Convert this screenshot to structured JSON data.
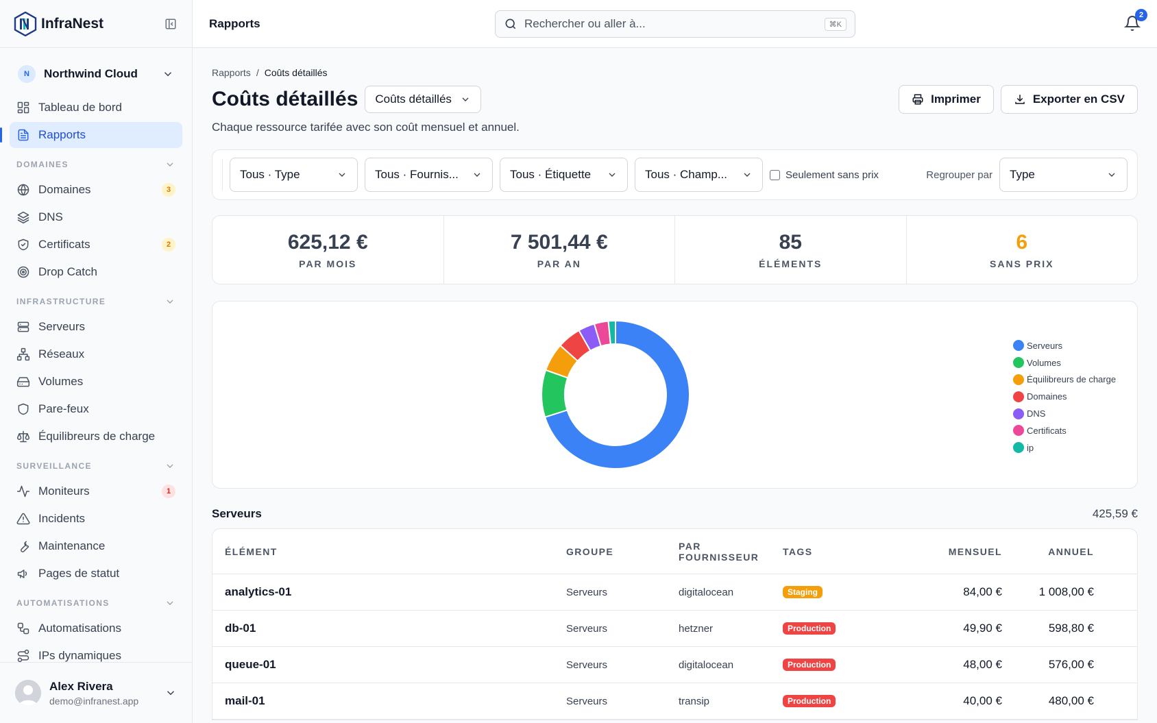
{
  "brand": {
    "name": "InfraNest"
  },
  "org": {
    "initial": "N",
    "name": "Northwind Cloud"
  },
  "nav_top": [
    {
      "label": "Tableau de bord",
      "icon": "dashboard-icon"
    },
    {
      "label": "Rapports",
      "icon": "report-icon",
      "active": true
    }
  ],
  "sections": [
    {
      "title": "DOMAINES",
      "items": [
        {
          "label": "Domaines",
          "icon": "globe-icon",
          "badge": "3",
          "badge_color": "amber"
        },
        {
          "label": "DNS",
          "icon": "layers-icon"
        },
        {
          "label": "Certificats",
          "icon": "shield-check-icon",
          "badge": "2",
          "badge_color": "amber"
        },
        {
          "label": "Drop Catch",
          "icon": "target-icon"
        }
      ]
    },
    {
      "title": "INFRASTRUCTURE",
      "items": [
        {
          "label": "Serveurs",
          "icon": "server-icon"
        },
        {
          "label": "Réseaux",
          "icon": "network-icon"
        },
        {
          "label": "Volumes",
          "icon": "hard-drive-icon"
        },
        {
          "label": "Pare-feux",
          "icon": "shield-icon"
        },
        {
          "label": "Équilibreurs de charge",
          "icon": "scale-icon"
        }
      ]
    },
    {
      "title": "SURVEILLANCE",
      "items": [
        {
          "label": "Moniteurs",
          "icon": "activity-icon",
          "badge": "1",
          "badge_color": "red"
        },
        {
          "label": "Incidents",
          "icon": "alert-triangle-icon"
        },
        {
          "label": "Maintenance",
          "icon": "wrench-icon"
        },
        {
          "label": "Pages de statut",
          "icon": "megaphone-icon"
        }
      ]
    },
    {
      "title": "AUTOMATISATIONS",
      "items": [
        {
          "label": "Automatisations",
          "icon": "workflow-icon"
        },
        {
          "label": "IPs dynamiques",
          "icon": "route-icon"
        }
      ]
    }
  ],
  "user": {
    "name": "Alex Rivera",
    "email": "demo@infranest.app"
  },
  "topbar": {
    "title": "Rapports",
    "search_placeholder": "Rechercher ou aller à...",
    "shortcut": "⌘K",
    "notifications": "2"
  },
  "breadcrumb": {
    "root": "Rapports",
    "sep": "/",
    "current": "Coûts détaillés"
  },
  "page": {
    "title": "Coûts détaillés",
    "view_select": "Coûts détaillés",
    "subtitle": "Chaque ressource tarifée avec son coût mensuel et annuel.",
    "print_label": "Imprimer",
    "export_label": "Exporter en CSV"
  },
  "filters": {
    "type": "Tous · Type",
    "provider": "Tous · Fournis...",
    "tag": "Tous · Étiquette",
    "field": "Tous · Champ...",
    "unpriced_only": "Seulement sans prix",
    "group_by_label": "Regrouper par",
    "group_by_value": "Type"
  },
  "stats": [
    {
      "value": "625,12 €",
      "label": "PAR MOIS",
      "color": "#374151"
    },
    {
      "value": "7 501,44 €",
      "label": "PAR AN",
      "color": "#374151"
    },
    {
      "value": "85",
      "label": "ÉLÉMENTS",
      "color": "#374151"
    },
    {
      "value": "6",
      "label": "SANS PRIX",
      "color": "#f59e0b"
    }
  ],
  "chart_data": {
    "type": "pie",
    "donut": true,
    "categories": [
      "Serveurs",
      "Volumes",
      "Équilibreurs de charge",
      "Domaines",
      "DNS",
      "Certificats",
      "ip"
    ],
    "values": [
      68,
      10,
      6,
      5,
      3.5,
      3,
      1.5
    ],
    "colors": [
      "#3b82f6",
      "#22c55e",
      "#f59e0b",
      "#ef4444",
      "#8b5cf6",
      "#ec4899",
      "#14b8a6"
    ],
    "legend_position": "right"
  },
  "group": {
    "name": "Serveurs",
    "total": "425,59 €"
  },
  "table": {
    "headers": {
      "element": "ÉLÉMENT",
      "group": "GROUPE",
      "provider_line1": "PAR",
      "provider_line2": "FOURNISSEUR",
      "tags": "TAGS",
      "monthly": "MENSUEL",
      "annual": "ANNUEL"
    },
    "rows": [
      {
        "element": "analytics-01",
        "group": "Serveurs",
        "provider": "digitalocean",
        "tag": "Staging",
        "tag_color": "#f59e0b",
        "monthly": "84,00 €",
        "annual": "1 008,00 €"
      },
      {
        "element": "db-01",
        "group": "Serveurs",
        "provider": "hetzner",
        "tag": "Production",
        "tag_color": "#ef4444",
        "monthly": "49,90 €",
        "annual": "598,80 €"
      },
      {
        "element": "queue-01",
        "group": "Serveurs",
        "provider": "digitalocean",
        "tag": "Production",
        "tag_color": "#ef4444",
        "monthly": "48,00 €",
        "annual": "576,00 €"
      },
      {
        "element": "mail-01",
        "group": "Serveurs",
        "provider": "transip",
        "tag": "Production",
        "tag_color": "#ef4444",
        "monthly": "40,00 €",
        "annual": "480,00 €"
      }
    ]
  }
}
